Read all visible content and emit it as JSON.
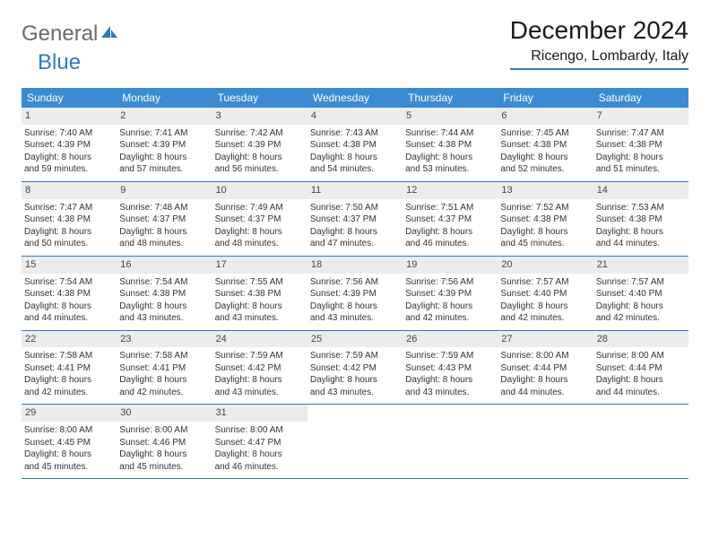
{
  "brand": {
    "general": "General",
    "blue": "Blue"
  },
  "header": {
    "title": "December 2024",
    "location": "Ricengo, Lombardy, Italy"
  },
  "colors": {
    "header_bar": "#3b8bd4",
    "rule": "#2c7bc4",
    "daynum_bg": "#ececec",
    "text": "#333333",
    "grey": "#6b6b6b"
  },
  "dayNames": [
    "Sunday",
    "Monday",
    "Tuesday",
    "Wednesday",
    "Thursday",
    "Friday",
    "Saturday"
  ],
  "weeks": [
    [
      {
        "n": "1",
        "sr": "Sunrise: 7:40 AM",
        "ss": "Sunset: 4:39 PM",
        "d1": "Daylight: 8 hours",
        "d2": "and 59 minutes."
      },
      {
        "n": "2",
        "sr": "Sunrise: 7:41 AM",
        "ss": "Sunset: 4:39 PM",
        "d1": "Daylight: 8 hours",
        "d2": "and 57 minutes."
      },
      {
        "n": "3",
        "sr": "Sunrise: 7:42 AM",
        "ss": "Sunset: 4:39 PM",
        "d1": "Daylight: 8 hours",
        "d2": "and 56 minutes."
      },
      {
        "n": "4",
        "sr": "Sunrise: 7:43 AM",
        "ss": "Sunset: 4:38 PM",
        "d1": "Daylight: 8 hours",
        "d2": "and 54 minutes."
      },
      {
        "n": "5",
        "sr": "Sunrise: 7:44 AM",
        "ss": "Sunset: 4:38 PM",
        "d1": "Daylight: 8 hours",
        "d2": "and 53 minutes."
      },
      {
        "n": "6",
        "sr": "Sunrise: 7:45 AM",
        "ss": "Sunset: 4:38 PM",
        "d1": "Daylight: 8 hours",
        "d2": "and 52 minutes."
      },
      {
        "n": "7",
        "sr": "Sunrise: 7:47 AM",
        "ss": "Sunset: 4:38 PM",
        "d1": "Daylight: 8 hours",
        "d2": "and 51 minutes."
      }
    ],
    [
      {
        "n": "8",
        "sr": "Sunrise: 7:47 AM",
        "ss": "Sunset: 4:38 PM",
        "d1": "Daylight: 8 hours",
        "d2": "and 50 minutes."
      },
      {
        "n": "9",
        "sr": "Sunrise: 7:48 AM",
        "ss": "Sunset: 4:37 PM",
        "d1": "Daylight: 8 hours",
        "d2": "and 48 minutes."
      },
      {
        "n": "10",
        "sr": "Sunrise: 7:49 AM",
        "ss": "Sunset: 4:37 PM",
        "d1": "Daylight: 8 hours",
        "d2": "and 48 minutes."
      },
      {
        "n": "11",
        "sr": "Sunrise: 7:50 AM",
        "ss": "Sunset: 4:37 PM",
        "d1": "Daylight: 8 hours",
        "d2": "and 47 minutes."
      },
      {
        "n": "12",
        "sr": "Sunrise: 7:51 AM",
        "ss": "Sunset: 4:37 PM",
        "d1": "Daylight: 8 hours",
        "d2": "and 46 minutes."
      },
      {
        "n": "13",
        "sr": "Sunrise: 7:52 AM",
        "ss": "Sunset: 4:38 PM",
        "d1": "Daylight: 8 hours",
        "d2": "and 45 minutes."
      },
      {
        "n": "14",
        "sr": "Sunrise: 7:53 AM",
        "ss": "Sunset: 4:38 PM",
        "d1": "Daylight: 8 hours",
        "d2": "and 44 minutes."
      }
    ],
    [
      {
        "n": "15",
        "sr": "Sunrise: 7:54 AM",
        "ss": "Sunset: 4:38 PM",
        "d1": "Daylight: 8 hours",
        "d2": "and 44 minutes."
      },
      {
        "n": "16",
        "sr": "Sunrise: 7:54 AM",
        "ss": "Sunset: 4:38 PM",
        "d1": "Daylight: 8 hours",
        "d2": "and 43 minutes."
      },
      {
        "n": "17",
        "sr": "Sunrise: 7:55 AM",
        "ss": "Sunset: 4:38 PM",
        "d1": "Daylight: 8 hours",
        "d2": "and 43 minutes."
      },
      {
        "n": "18",
        "sr": "Sunrise: 7:56 AM",
        "ss": "Sunset: 4:39 PM",
        "d1": "Daylight: 8 hours",
        "d2": "and 43 minutes."
      },
      {
        "n": "19",
        "sr": "Sunrise: 7:56 AM",
        "ss": "Sunset: 4:39 PM",
        "d1": "Daylight: 8 hours",
        "d2": "and 42 minutes."
      },
      {
        "n": "20",
        "sr": "Sunrise: 7:57 AM",
        "ss": "Sunset: 4:40 PM",
        "d1": "Daylight: 8 hours",
        "d2": "and 42 minutes."
      },
      {
        "n": "21",
        "sr": "Sunrise: 7:57 AM",
        "ss": "Sunset: 4:40 PM",
        "d1": "Daylight: 8 hours",
        "d2": "and 42 minutes."
      }
    ],
    [
      {
        "n": "22",
        "sr": "Sunrise: 7:58 AM",
        "ss": "Sunset: 4:41 PM",
        "d1": "Daylight: 8 hours",
        "d2": "and 42 minutes."
      },
      {
        "n": "23",
        "sr": "Sunrise: 7:58 AM",
        "ss": "Sunset: 4:41 PM",
        "d1": "Daylight: 8 hours",
        "d2": "and 42 minutes."
      },
      {
        "n": "24",
        "sr": "Sunrise: 7:59 AM",
        "ss": "Sunset: 4:42 PM",
        "d1": "Daylight: 8 hours",
        "d2": "and 43 minutes."
      },
      {
        "n": "25",
        "sr": "Sunrise: 7:59 AM",
        "ss": "Sunset: 4:42 PM",
        "d1": "Daylight: 8 hours",
        "d2": "and 43 minutes."
      },
      {
        "n": "26",
        "sr": "Sunrise: 7:59 AM",
        "ss": "Sunset: 4:43 PM",
        "d1": "Daylight: 8 hours",
        "d2": "and 43 minutes."
      },
      {
        "n": "27",
        "sr": "Sunrise: 8:00 AM",
        "ss": "Sunset: 4:44 PM",
        "d1": "Daylight: 8 hours",
        "d2": "and 44 minutes."
      },
      {
        "n": "28",
        "sr": "Sunrise: 8:00 AM",
        "ss": "Sunset: 4:44 PM",
        "d1": "Daylight: 8 hours",
        "d2": "and 44 minutes."
      }
    ],
    [
      {
        "n": "29",
        "sr": "Sunrise: 8:00 AM",
        "ss": "Sunset: 4:45 PM",
        "d1": "Daylight: 8 hours",
        "d2": "and 45 minutes."
      },
      {
        "n": "30",
        "sr": "Sunrise: 8:00 AM",
        "ss": "Sunset: 4:46 PM",
        "d1": "Daylight: 8 hours",
        "d2": "and 45 minutes."
      },
      {
        "n": "31",
        "sr": "Sunrise: 8:00 AM",
        "ss": "Sunset: 4:47 PM",
        "d1": "Daylight: 8 hours",
        "d2": "and 46 minutes."
      },
      null,
      null,
      null,
      null
    ]
  ]
}
